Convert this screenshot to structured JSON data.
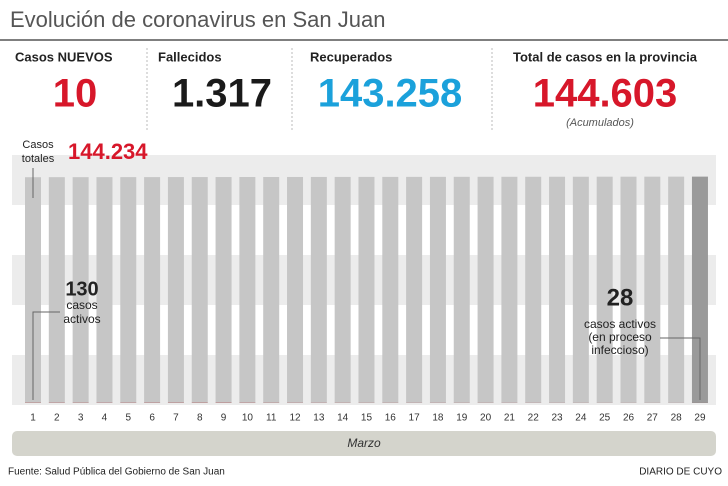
{
  "title": "Evolución de coronavirus en San Juan",
  "stats": [
    {
      "label": "Casos NUEVOS",
      "value": "10",
      "color": "#d7172a"
    },
    {
      "label": "Fallecidos",
      "value": "1.317",
      "color": "#1a1a1a"
    },
    {
      "label": "Recuperados",
      "value": "143.258",
      "color": "#1ba1db"
    },
    {
      "label": "Total de casos en la provincia",
      "value": "144.603",
      "color": "#d7172a",
      "note": "(Acumulados)"
    }
  ],
  "chart_data": {
    "type": "bar",
    "categories": [
      1,
      2,
      3,
      4,
      5,
      6,
      7,
      8,
      9,
      10,
      11,
      12,
      13,
      14,
      15,
      16,
      17,
      18,
      19,
      20,
      21,
      22,
      23,
      24,
      25,
      26,
      27,
      28,
      29
    ],
    "series": [
      {
        "color": "#c6c6c6",
        "last_color": "#9a9a9a",
        "values": [
          144234,
          144247,
          144260,
          144274,
          144287,
          144300,
          144313,
          144326,
          144339,
          144353,
          144366,
          144379,
          144392,
          144405,
          144418,
          144432,
          144445,
          144458,
          144471,
          144484,
          144498,
          144511,
          144524,
          144537,
          144550,
          144563,
          144577,
          144590,
          144603
        ]
      },
      {
        "color": "#a31d20",
        "values": [
          130,
          120,
          115,
          110,
          120,
          135,
          140,
          145,
          150,
          120,
          100,
          90,
          80,
          75,
          70,
          70,
          65,
          65,
          60,
          60,
          55,
          55,
          50,
          45,
          40,
          38,
          35,
          32,
          28
        ]
      }
    ],
    "ylim": [
      0,
      145000
    ],
    "x_label": "Marzo",
    "annotations": {
      "start_label": [
        "Casos",
        "totales"
      ],
      "start_total": "144.234",
      "start_active": [
        "130",
        "casos",
        "activos"
      ],
      "end_active": [
        "28",
        "casos activos",
        "(en proceso",
        "infeccioso)"
      ]
    }
  },
  "footer": {
    "source": "Fuente: Salud Pública del Gobierno de San Juan",
    "brand": "DIARIO DE CUYO"
  }
}
